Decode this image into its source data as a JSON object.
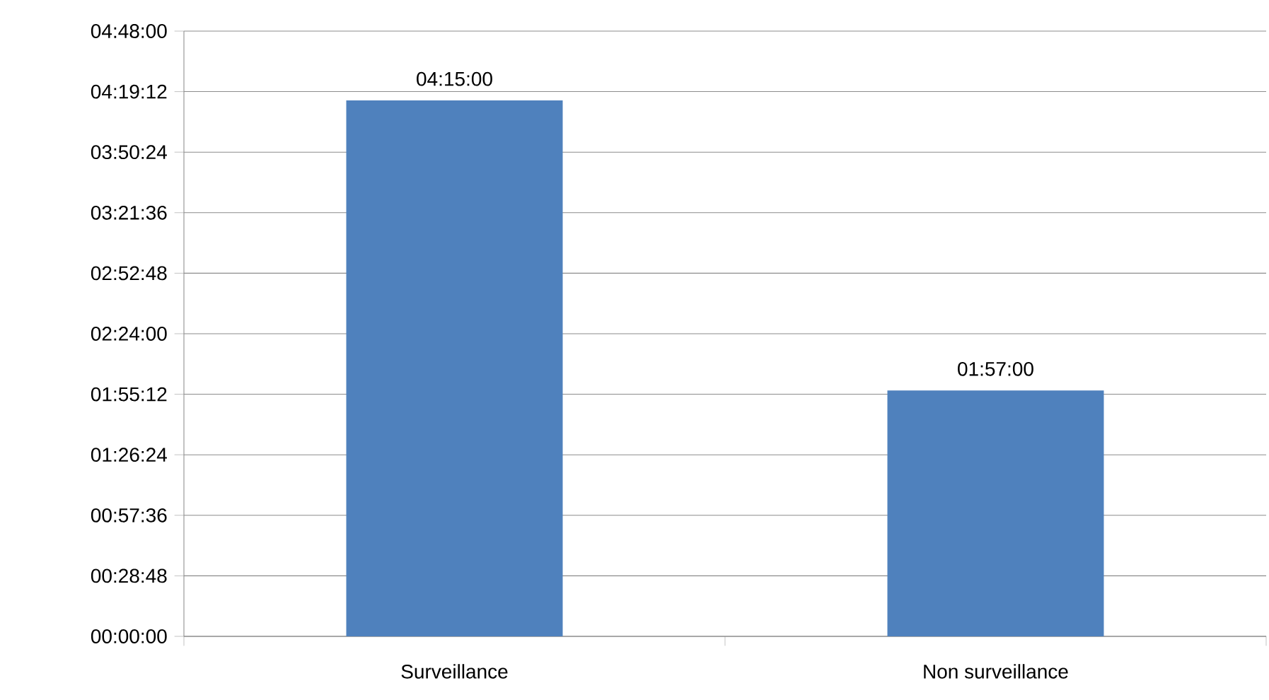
{
  "chart_data": {
    "type": "bar",
    "categories": [
      "Surveillance",
      "Non surveillance"
    ],
    "values": [
      4.25,
      1.95
    ],
    "value_labels": [
      "04:15:00",
      "01:57:00"
    ],
    "color": "#4f81bd",
    "ylim": [
      0,
      4.8
    ],
    "yticks": [
      {
        "value": 0,
        "label": "00:00:00"
      },
      {
        "value": 0.48,
        "label": "00:28:48"
      },
      {
        "value": 0.96,
        "label": "00:57:36"
      },
      {
        "value": 1.44,
        "label": "01:26:24"
      },
      {
        "value": 1.92,
        "label": "01:55:12"
      },
      {
        "value": 2.4,
        "label": "02:24:00"
      },
      {
        "value": 2.88,
        "label": "02:52:48"
      },
      {
        "value": 3.36,
        "label": "03:21:36"
      },
      {
        "value": 3.84,
        "label": "03:50:24"
      },
      {
        "value": 4.32,
        "label": "04:19:12"
      },
      {
        "value": 4.8,
        "label": "04:48:00"
      }
    ],
    "grid": "y"
  }
}
